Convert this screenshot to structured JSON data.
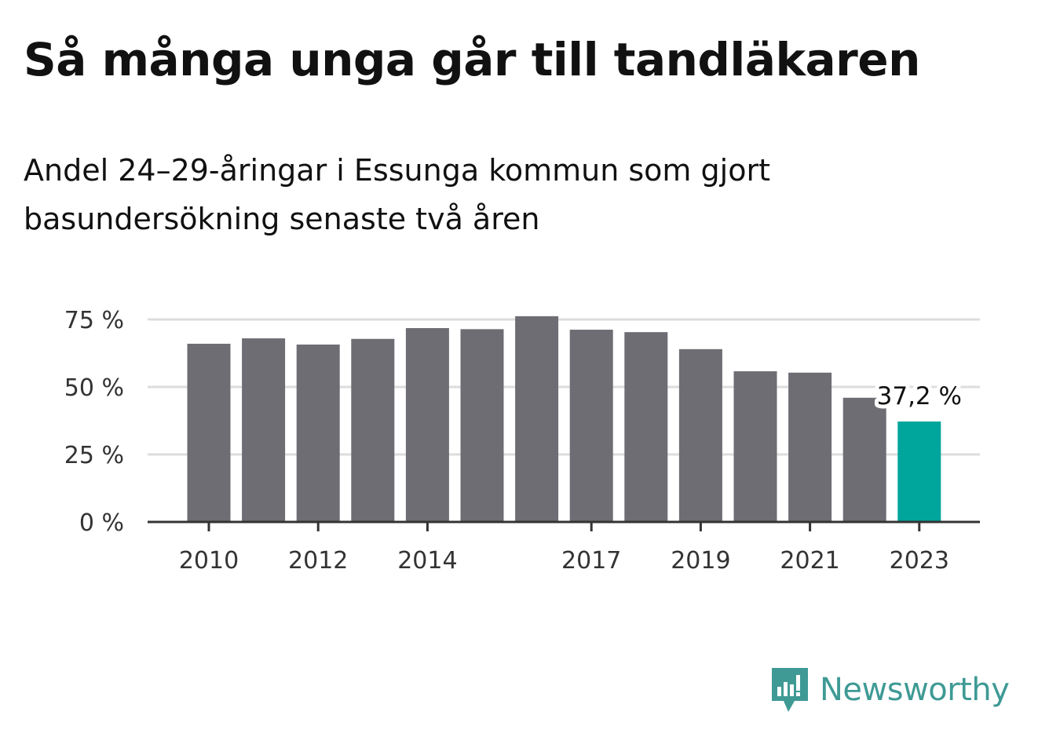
{
  "title": "Så många unga går till tandläkaren",
  "subtitle": "Andel 24–29-åringar i Essunga kommun som gjort basundersökning senaste två åren",
  "brand": {
    "name": "Newsworthy",
    "icon": "newsworthy-logo-icon",
    "color": "#3f9a95"
  },
  "colors": {
    "bar": "#6e6d74",
    "highlight": "#00a59b",
    "grid": "#dddddd",
    "axis": "#333333"
  },
  "chart_data": {
    "type": "bar",
    "categories": [
      "2010",
      "2011",
      "2012",
      "2013",
      "2014",
      "2015",
      "2016",
      "2017",
      "2018",
      "2019",
      "2020",
      "2021",
      "2022",
      "2023"
    ],
    "x_tick_labels": [
      "2010",
      "",
      "2012",
      "",
      "2014",
      "",
      "",
      "2017",
      "",
      "2019",
      "",
      "2021",
      "",
      "2023"
    ],
    "values": [
      66,
      68,
      65.7,
      67.8,
      71.8,
      71.4,
      76.2,
      71.2,
      70.3,
      64,
      55.8,
      55.3,
      46,
      37.2
    ],
    "highlight_index": 13,
    "highlight_label": "37,2 %",
    "y_ticks": [
      0,
      25,
      50,
      75
    ],
    "y_tick_labels": [
      "0 %",
      "25 %",
      "50 %",
      "75 %"
    ],
    "ylim": [
      0,
      75
    ],
    "grid": true
  }
}
